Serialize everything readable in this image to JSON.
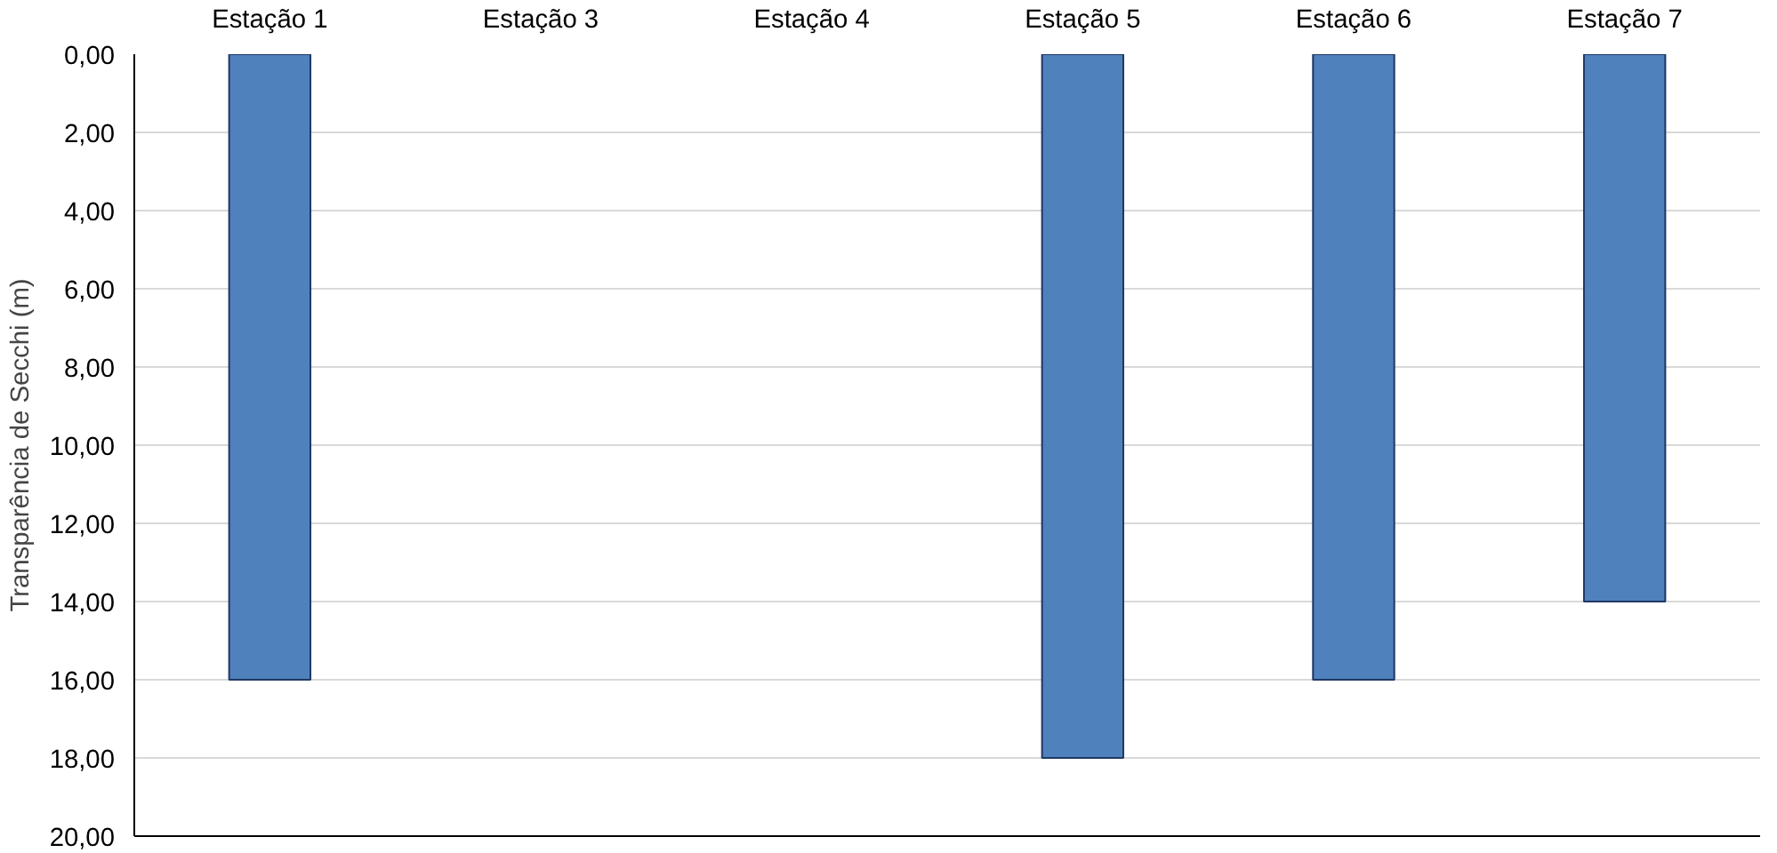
{
  "chart_data": {
    "type": "bar",
    "ylabel": "Transparência de Secchi (m)",
    "categories": [
      "Estação 1",
      "Estação 3",
      "Estação 4",
      "Estação 5",
      "Estação 6",
      "Estação 7"
    ],
    "values": [
      16,
      null,
      null,
      18,
      16,
      14
    ],
    "color": "#4f81bd",
    "ylim": [
      20,
      0
    ],
    "yticks": [
      {
        "value": 0,
        "label": "0,00"
      },
      {
        "value": 2,
        "label": "2,00"
      },
      {
        "value": 4,
        "label": "4,00"
      },
      {
        "value": 6,
        "label": "6,00"
      },
      {
        "value": 8,
        "label": "8,00"
      },
      {
        "value": 10,
        "label": "10,00"
      },
      {
        "value": 12,
        "label": "12,00"
      },
      {
        "value": 14,
        "label": "14,00"
      },
      {
        "value": 16,
        "label": "16,00"
      },
      {
        "value": 18,
        "label": "18,00"
      },
      {
        "value": 20,
        "label": "20,00"
      }
    ],
    "grid": "y"
  }
}
